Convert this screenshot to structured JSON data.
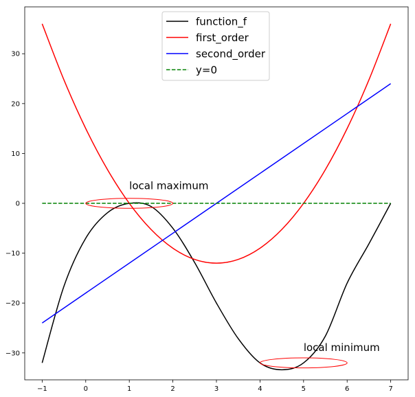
{
  "chart_data": {
    "type": "line",
    "title": "",
    "xlabel": "",
    "ylabel": "",
    "xlim": [
      -1.4,
      7.4
    ],
    "ylim": [
      -35.4,
      39.4
    ],
    "x_ticks": [
      -1,
      0,
      1,
      2,
      3,
      4,
      5,
      6,
      7
    ],
    "x_tick_labels": [
      "−1",
      "0",
      "1",
      "2",
      "3",
      "4",
      "5",
      "6",
      "7"
    ],
    "y_ticks": [
      -30,
      -20,
      -10,
      0,
      10,
      20,
      30
    ],
    "y_tick_labels": [
      "−30",
      "−20",
      "−10",
      "0",
      "10",
      "20",
      "30"
    ],
    "grid": false,
    "legend_position": "top-center",
    "series": [
      {
        "name": "function_f",
        "color": "#000000",
        "dash": "solid",
        "x": [
          -1,
          -0.5,
          0,
          0.5,
          1,
          1.5,
          2,
          2.5,
          3,
          3.5,
          4,
          4.5,
          5,
          5.5,
          6,
          6.5,
          7
        ],
        "y": [
          -32,
          -16.63,
          -7,
          -1.88,
          0,
          -0.63,
          -5,
          -11.88,
          -20,
          -27.13,
          -32,
          -33.38,
          -32,
          -26.63,
          -16,
          -8.13,
          0
        ]
      },
      {
        "name": "first_order",
        "color": "#ff0000",
        "dash": "solid",
        "x": [
          -1,
          -0.5,
          0,
          0.5,
          1,
          1.5,
          2,
          2.5,
          3,
          3.5,
          4,
          4.5,
          5,
          5.5,
          6,
          6.5,
          7
        ],
        "y": [
          36,
          24.75,
          15,
          6.75,
          0,
          -5.25,
          -9,
          -11.25,
          -12,
          -11.25,
          -9,
          -5.25,
          0,
          6.75,
          15,
          24.75,
          36
        ]
      },
      {
        "name": "second_order",
        "color": "#0000ff",
        "dash": "solid",
        "x": [
          -1,
          7
        ],
        "y": [
          -24,
          24
        ]
      },
      {
        "name": "y=0",
        "color": "#008000",
        "dash": "dashed",
        "x": [
          -1,
          7
        ],
        "y": [
          0,
          0
        ]
      }
    ],
    "annotations": [
      {
        "text": "local maximum",
        "x": 1,
        "y": 2.8,
        "ellipse_center": [
          1,
          0
        ],
        "ellipse_width": 2,
        "ellipse_height": 2,
        "color": "#ff0000"
      },
      {
        "text": "local minimum",
        "x": 5,
        "y": -29.6,
        "ellipse_center": [
          5,
          -32
        ],
        "ellipse_width": 2,
        "ellipse_height": 2,
        "color": "#ff0000"
      }
    ]
  }
}
